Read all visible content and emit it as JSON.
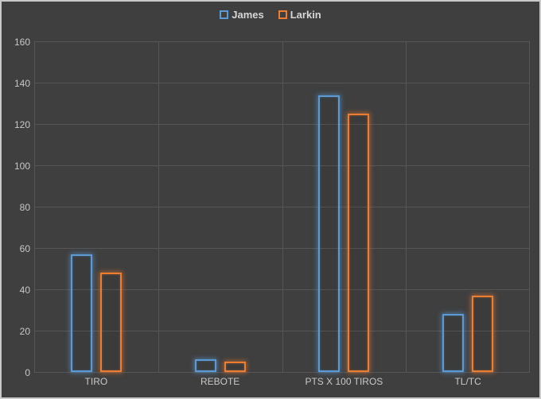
{
  "window": {
    "background": "#3F3F3F",
    "frame_border": "#C9C9C9"
  },
  "legend": {
    "position": "top-center",
    "items": [
      {
        "label": "James",
        "color": "#5B9BD5"
      },
      {
        "label": "Larkin",
        "color": "#ED7D31"
      }
    ]
  },
  "chart_data": {
    "type": "bar",
    "style": "outlined-glow-bars-on-dark",
    "title": "",
    "xlabel": "",
    "ylabel": "",
    "categories": [
      "TIRO",
      "REBOTE",
      "PTS X 100 TIROS",
      "TL/TC"
    ],
    "series": [
      {
        "name": "James",
        "color": "#5B9BD5",
        "values": [
          57,
          6,
          134,
          28
        ]
      },
      {
        "name": "Larkin",
        "color": "#ED7D31",
        "values": [
          48,
          5,
          125,
          37
        ]
      }
    ],
    "ylim": [
      0,
      160
    ],
    "yticks": [
      0,
      20,
      40,
      60,
      80,
      100,
      120,
      140,
      160
    ],
    "grid": true,
    "vertical_category_separators": true,
    "legend_position": "top",
    "colors": {
      "plot_background": "#3F3F3F",
      "gridline": "#565656",
      "tick_text": "#C8C8C8",
      "legend_text": "#D6D6D6"
    }
  }
}
